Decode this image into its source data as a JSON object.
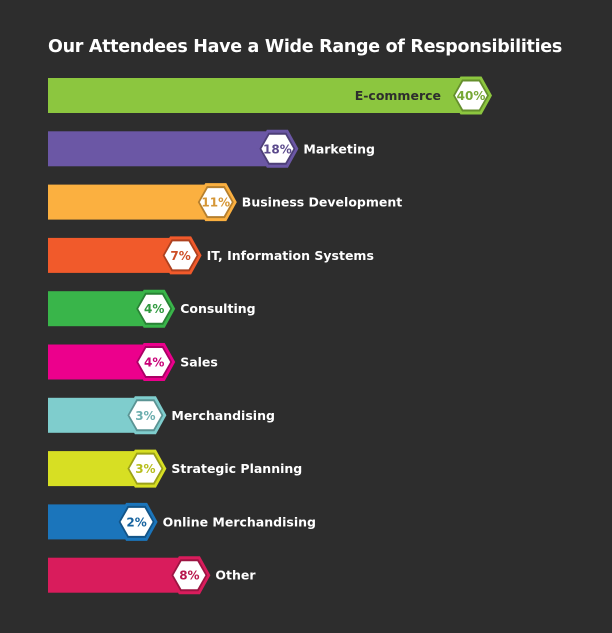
{
  "chart_data": {
    "type": "bar",
    "orientation": "horizontal",
    "title": "Our Attendees Have a Wide Range of Responsibilities",
    "unit": "%",
    "categories": [
      "E-commerce",
      "Marketing",
      "Business Development",
      "IT, Information Systems",
      "Consulting",
      "Sales",
      "Merchandising",
      "Strategic Planning",
      "Online Merchandising",
      "Other"
    ],
    "values": [
      40,
      18,
      11,
      7,
      4,
      4,
      3,
      3,
      2,
      8
    ],
    "value_labels": [
      "40%",
      "18%",
      "11%",
      "7%",
      "4%",
      "4%",
      "3%",
      "3%",
      "2%",
      "8%"
    ],
    "colors": [
      "#8cc63f",
      "#6b57a5",
      "#fbb040",
      "#f15a2b",
      "#39b54a",
      "#ec008c",
      "#7fcdcd",
      "#d7df23",
      "#1b75bb",
      "#d91c5c"
    ],
    "label_position": [
      "inside",
      "outside",
      "outside",
      "outside",
      "outside",
      "outside",
      "outside",
      "outside",
      "outside",
      "outside"
    ],
    "background": "#2d2d2d",
    "grid": false,
    "legend": "none"
  }
}
